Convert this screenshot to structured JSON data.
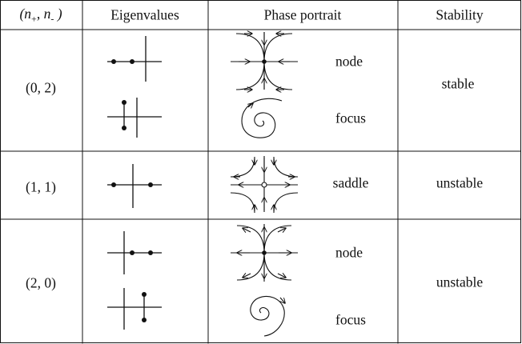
{
  "headers": {
    "col1_open": "(",
    "col1_n": "n",
    "col1_sub_plus": "+",
    "col1_comma": ", ",
    "col1_n2": "n",
    "col1_sub_minus": "-",
    "col1_close": " )",
    "eigenvalues": "Eigenvalues",
    "phase_portrait": "Phase portrait",
    "stability": "Stability"
  },
  "rows": [
    {
      "index_pair": "(0, 2)",
      "portraits": [
        {
          "label": "node",
          "type": "stable-node-icon"
        },
        {
          "label": "focus",
          "type": "stable-focus-icon"
        }
      ],
      "stability": "stable"
    },
    {
      "index_pair": "(1, 1)",
      "portraits": [
        {
          "label": "saddle",
          "type": "saddle-icon"
        }
      ],
      "stability": "unstable"
    },
    {
      "index_pair": "(2, 0)",
      "portraits": [
        {
          "label": "node",
          "type": "unstable-node-icon"
        },
        {
          "label": "focus",
          "type": "unstable-focus-icon"
        }
      ],
      "stability": "unstable"
    }
  ],
  "colors": {
    "ink": "#111111",
    "background": "#ffffff"
  }
}
